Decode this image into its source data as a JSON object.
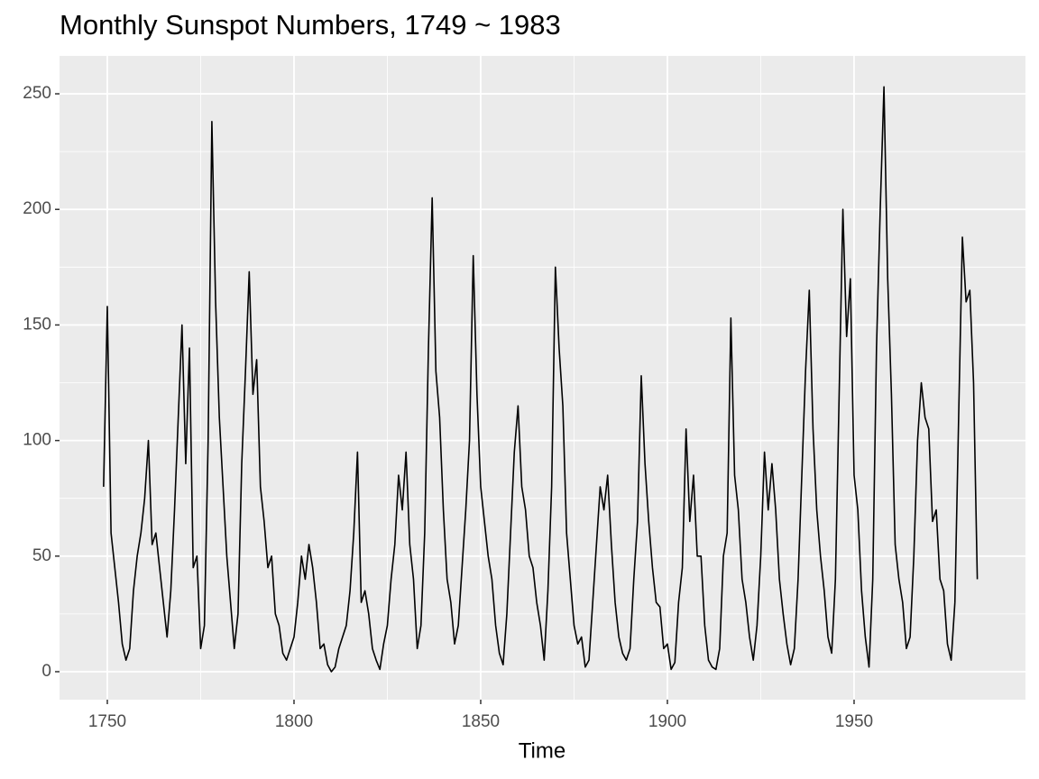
{
  "chart_data": {
    "type": "line",
    "title": "Monthly Sunspot Numbers, 1749 ~ 1983",
    "x_label": "Time",
    "color": "#000000",
    "grid": true,
    "xlim": [
      1737.2,
      1995.9
    ],
    "ylim": [
      -12.1,
      266.4
    ],
    "xticks": [
      1750,
      1800,
      1850,
      1900,
      1950
    ],
    "yticks": [
      0,
      50,
      100,
      150,
      200,
      250
    ],
    "x": [
      1749,
      1750,
      1751,
      1752,
      1753,
      1754,
      1755,
      1756,
      1757,
      1758,
      1759,
      1760,
      1761,
      1762,
      1763,
      1764,
      1765,
      1766,
      1767,
      1768,
      1769,
      1770,
      1771,
      1772,
      1773,
      1774,
      1775,
      1776,
      1777,
      1778,
      1779,
      1780,
      1781,
      1782,
      1783,
      1784,
      1785,
      1786,
      1787,
      1788,
      1789,
      1790,
      1791,
      1792,
      1793,
      1794,
      1795,
      1796,
      1797,
      1798,
      1799,
      1800,
      1801,
      1802,
      1803,
      1804,
      1805,
      1806,
      1807,
      1808,
      1809,
      1810,
      1811,
      1812,
      1813,
      1814,
      1815,
      1816,
      1817,
      1818,
      1819,
      1820,
      1821,
      1822,
      1823,
      1824,
      1825,
      1826,
      1827,
      1828,
      1829,
      1830,
      1831,
      1832,
      1833,
      1834,
      1835,
      1836,
      1837,
      1838,
      1839,
      1840,
      1841,
      1842,
      1843,
      1844,
      1845,
      1846,
      1847,
      1848,
      1849,
      1850,
      1851,
      1852,
      1853,
      1854,
      1855,
      1856,
      1857,
      1858,
      1859,
      1860,
      1861,
      1862,
      1863,
      1864,
      1865,
      1866,
      1867,
      1868,
      1869,
      1870,
      1871,
      1872,
      1873,
      1874,
      1875,
      1876,
      1877,
      1878,
      1879,
      1880,
      1881,
      1882,
      1883,
      1884,
      1885,
      1886,
      1887,
      1888,
      1889,
      1890,
      1891,
      1892,
      1893,
      1894,
      1895,
      1896,
      1897,
      1898,
      1899,
      1900,
      1901,
      1902,
      1903,
      1904,
      1905,
      1906,
      1907,
      1908,
      1909,
      1910,
      1911,
      1912,
      1913,
      1914,
      1915,
      1916,
      1917,
      1918,
      1919,
      1920,
      1921,
      1922,
      1923,
      1924,
      1925,
      1926,
      1927,
      1928,
      1929,
      1930,
      1931,
      1932,
      1933,
      1934,
      1935,
      1936,
      1937,
      1938,
      1939,
      1940,
      1941,
      1942,
      1943,
      1944,
      1945,
      1946,
      1947,
      1948,
      1949,
      1950,
      1951,
      1952,
      1953,
      1954,
      1955,
      1956,
      1957,
      1958,
      1959,
      1960,
      1961,
      1962,
      1963,
      1964,
      1965,
      1966,
      1967,
      1968,
      1969,
      1970,
      1971,
      1972,
      1973,
      1974,
      1975,
      1976,
      1977,
      1978,
      1979,
      1980,
      1981,
      1982,
      1983
    ],
    "values": [
      80,
      158,
      60,
      45,
      30,
      12,
      5,
      10,
      35,
      50,
      60,
      75,
      100,
      55,
      60,
      45,
      30,
      15,
      35,
      70,
      110,
      150,
      90,
      140,
      45,
      50,
      10,
      20,
      100,
      238,
      160,
      110,
      80,
      50,
      30,
      10,
      25,
      90,
      130,
      173,
      120,
      135,
      80,
      65,
      45,
      50,
      25,
      20,
      8,
      5,
      10,
      15,
      30,
      50,
      40,
      55,
      45,
      30,
      10,
      12,
      3,
      0,
      2,
      10,
      15,
      20,
      35,
      60,
      95,
      30,
      35,
      25,
      10,
      5,
      1,
      12,
      20,
      40,
      55,
      85,
      70,
      95,
      55,
      40,
      10,
      20,
      60,
      140,
      205,
      130,
      110,
      70,
      40,
      30,
      12,
      20,
      45,
      70,
      100,
      180,
      120,
      80,
      65,
      50,
      40,
      20,
      8,
      3,
      25,
      60,
      95,
      115,
      80,
      70,
      50,
      45,
      30,
      20,
      5,
      35,
      80,
      175,
      140,
      115,
      60,
      40,
      20,
      12,
      15,
      2,
      5,
      30,
      55,
      80,
      70,
      85,
      55,
      30,
      15,
      8,
      5,
      10,
      40,
      65,
      128,
      90,
      65,
      45,
      30,
      28,
      10,
      12,
      1,
      4,
      30,
      45,
      105,
      65,
      85,
      50,
      50,
      20,
      5,
      2,
      1,
      10,
      50,
      60,
      153,
      85,
      70,
      40,
      30,
      15,
      5,
      20,
      50,
      95,
      70,
      90,
      70,
      40,
      25,
      12,
      3,
      10,
      40,
      85,
      130,
      165,
      105,
      70,
      50,
      35,
      15,
      8,
      40,
      120,
      200,
      145,
      170,
      85,
      70,
      35,
      15,
      2,
      40,
      140,
      200,
      253,
      170,
      120,
      55,
      40,
      30,
      10,
      15,
      50,
      100,
      125,
      110,
      105,
      65,
      70,
      40,
      35,
      12,
      5,
      30,
      110,
      188,
      160,
      165,
      125,
      40
    ]
  }
}
